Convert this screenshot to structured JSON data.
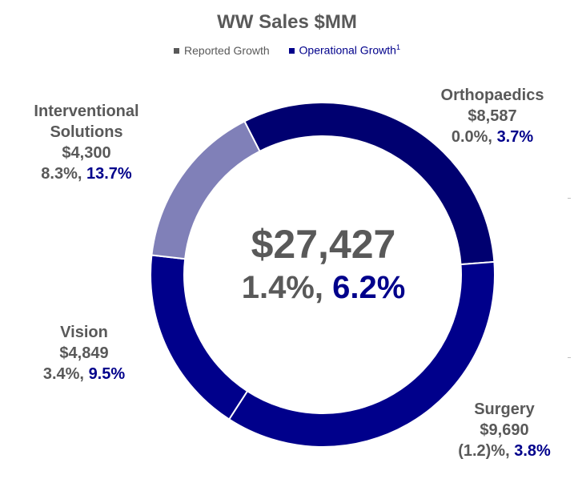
{
  "chart_data": {
    "type": "pie",
    "variant": "donut",
    "title": "WW Sales $MM",
    "legend": {
      "reported": "Reported Growth",
      "operational": "Operational Growth",
      "operational_footnote": "1"
    },
    "center": {
      "total": "$27,427",
      "reported_growth": "1.4%,",
      "operational_growth": "6.2%"
    },
    "segments": [
      {
        "name": "Orthopaedics",
        "value": 8587,
        "value_label": "$8,587",
        "reported": "0.0%,",
        "operational": "3.7%",
        "color": "#000070"
      },
      {
        "name": "Surgery",
        "value": 9690,
        "value_label": "$9,690",
        "reported": "(1.2)%,",
        "operational": "3.8%",
        "color": "#00008B"
      },
      {
        "name": "Vision",
        "value": 4849,
        "value_label": "$4,849",
        "reported": "3.4%,",
        "operational": "9.5%",
        "color": "#00008B"
      },
      {
        "name": "Interventional Solutions",
        "name_line1": "Interventional",
        "name_line2": "Solutions",
        "value": 4300,
        "value_label": "$4,300",
        "reported": "8.3%,",
        "operational": "13.7%",
        "color": "#8080B8"
      }
    ],
    "start_angle_deg": -27,
    "colors": {
      "reported_marker": "#595959",
      "operational_text": "#00008B",
      "separator": "#ffffff"
    }
  }
}
